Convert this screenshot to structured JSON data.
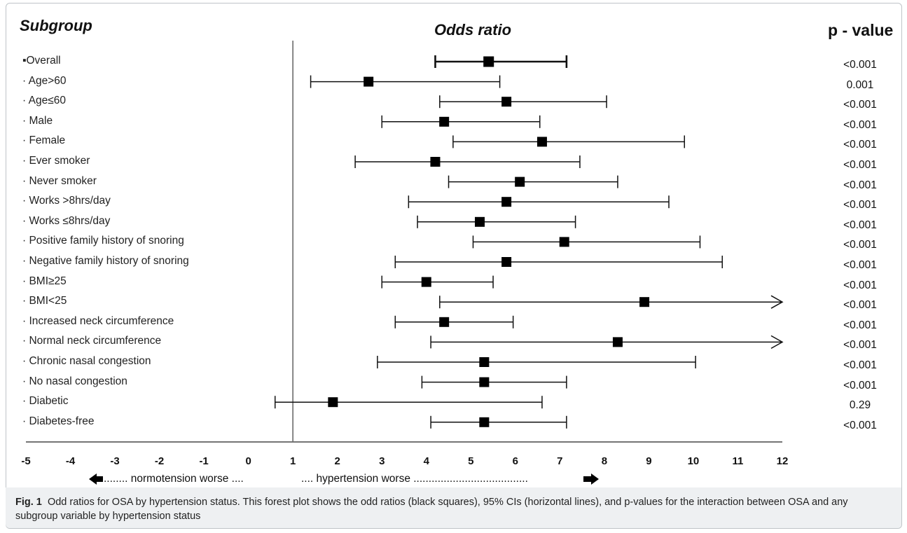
{
  "headers": {
    "subgroup": "Subgroup",
    "odds_ratio": "Odds ratio",
    "p_value": "p - value"
  },
  "direction_labels": {
    "left": "........ normotension worse ....",
    "right": ".... hypertension worse ......................................"
  },
  "caption": {
    "fig_label": "Fig. 1",
    "text": "Odd ratios for OSA by hypertension status. This forest plot shows the odd ratios (black squares), 95% CIs (horizontal lines), and p-values for the interaction between OSA and any subgroup variable by hypertension status"
  },
  "chart_data": {
    "type": "forest",
    "xlim": [
      -5,
      12
    ],
    "x_ticks": [
      "-5",
      "-4",
      "-3",
      "-2",
      "-1",
      "0",
      "1",
      "2",
      "3",
      "4",
      "5",
      "6",
      "7",
      "8",
      "9",
      "10",
      "11",
      "12"
    ],
    "reference_line": 1,
    "grid": false,
    "rows": [
      {
        "label": "Overall",
        "or": 5.4,
        "lo": 4.2,
        "hi": 7.15,
        "p": "<0.001",
        "bold": true
      },
      {
        "label": "Age>60",
        "or": 2.7,
        "lo": 1.4,
        "hi": 5.65,
        "p": "0.001"
      },
      {
        "label": "Age≤60",
        "or": 5.8,
        "lo": 4.3,
        "hi": 8.05,
        "p": "<0.001"
      },
      {
        "label": "Male",
        "or": 4.4,
        "lo": 3.0,
        "hi": 6.55,
        "p": "<0.001"
      },
      {
        "label": "Female",
        "or": 6.6,
        "lo": 4.6,
        "hi": 9.8,
        "p": "<0.001"
      },
      {
        "label": "Ever smoker",
        "or": 4.2,
        "lo": 2.4,
        "hi": 7.45,
        "p": "<0.001"
      },
      {
        "label": "Never smoker",
        "or": 6.1,
        "lo": 4.5,
        "hi": 8.3,
        "p": "<0.001"
      },
      {
        "label": "Works >8hrs/day",
        "or": 5.8,
        "lo": 3.6,
        "hi": 9.45,
        "p": "<0.001"
      },
      {
        "label": "Works ≤8hrs/day",
        "or": 5.2,
        "lo": 3.8,
        "hi": 7.35,
        "p": "<0.001"
      },
      {
        "label": "Positive family history of snoring",
        "or": 7.1,
        "lo": 5.05,
        "hi": 10.15,
        "p": "<0.001"
      },
      {
        "label": "Negative family history of snoring",
        "or": 5.8,
        "lo": 3.3,
        "hi": 10.65,
        "p": "<0.001"
      },
      {
        "label": "BMI≥25",
        "or": 4.0,
        "lo": 3.0,
        "hi": 5.5,
        "p": "<0.001"
      },
      {
        "label": "BMI<25",
        "or": 8.9,
        "lo": 4.3,
        "hi": 12,
        "p": "<0.001",
        "arrow_right": true
      },
      {
        "label": "Increased neck circumference",
        "or": 4.4,
        "lo": 3.3,
        "hi": 5.95,
        "p": "<0.001"
      },
      {
        "label": "Normal neck circumference",
        "or": 8.3,
        "lo": 4.1,
        "hi": 12,
        "p": "<0.001",
        "arrow_right": true
      },
      {
        "label": "Chronic nasal congestion",
        "or": 5.3,
        "lo": 2.9,
        "hi": 10.05,
        "p": "<0.001"
      },
      {
        "label": "No nasal congestion",
        "or": 5.3,
        "lo": 3.9,
        "hi": 7.15,
        "p": "<0.001"
      },
      {
        "label": "Diabetic",
        "or": 1.9,
        "lo": 0.6,
        "hi": 6.6,
        "p": "0.29"
      },
      {
        "label": "Diabetes-free",
        "or": 5.3,
        "lo": 4.1,
        "hi": 7.15,
        "p": "<0.001"
      }
    ]
  }
}
